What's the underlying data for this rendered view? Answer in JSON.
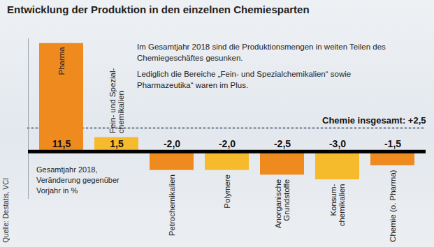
{
  "chart_data": {
    "type": "bar",
    "title": "Entwicklung der Produktion in den einzelnen Chemiesparten",
    "annotations": [
      "Im Gesamtjahr 2018 sind die Produktionsmengen in weiten Teilen des Chemiegeschäftes gesunken.",
      "Lediglich die Bereiche „Fein- und Spezialchemikalien“ sowie Pharmazeutika“ waren im Plus."
    ],
    "note": "Gesamtjahr 2018,\nVeränderung gegenüber\nVorjahr in %",
    "source": "Quelle: Destatis, VCI",
    "categories": [
      "Pharma",
      "Fein- und Spezial-\nchemikalien",
      "Petrochemikalien",
      "Polymere",
      "Anorganische\nGrundstoffe",
      "Konsum-\nchemikalien",
      "Chemie (o. Pharma)"
    ],
    "values": [
      11.5,
      1.5,
      -2.0,
      -2.0,
      -2.5,
      -3.0,
      -1.5
    ],
    "value_labels": [
      "11,5",
      "1,5",
      "-2,0",
      "-2,0",
      "-2,5",
      "-3,0",
      "-1,5"
    ],
    "colors": [
      "#ef8a1f",
      "#f6bb2c",
      "#ef8a1f",
      "#f6bb2c",
      "#ef8a1f",
      "#f6bb2c",
      "#ef8a1f"
    ],
    "reference": {
      "value": 2.5,
      "label": "Chemie insgesamt: +2,5"
    },
    "ylim": [
      -5,
      12
    ],
    "yticks": [],
    "data_labels": true,
    "tick_labels": false,
    "grid": false
  }
}
